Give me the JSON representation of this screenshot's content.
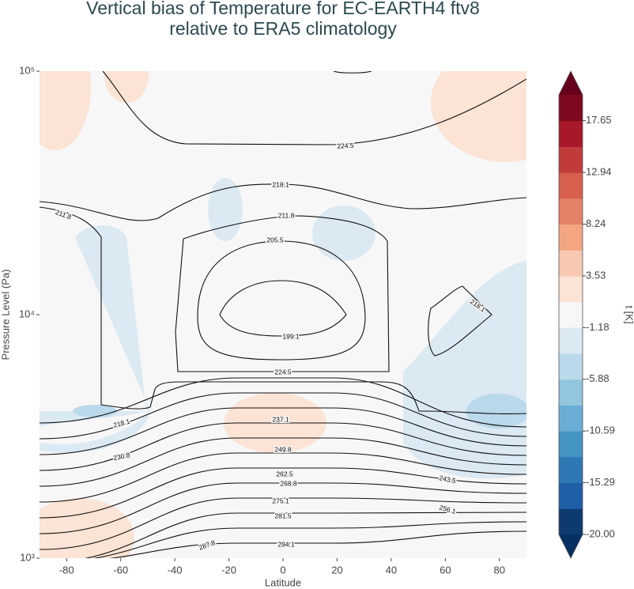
{
  "chart_data": {
    "type": "contour",
    "title": [
      "Vertical bias of Temperature for EC-EARTH4 ftv8",
      "relative to ERA5 climatology"
    ],
    "x_label": "Latitude",
    "y_label": "Pressure Level (Pa)",
    "xlim": [
      -90,
      90
    ],
    "xticks": [
      -80,
      -60,
      -40,
      -20,
      0,
      20,
      40,
      60,
      80
    ],
    "ylim": [
      1000,
      100000
    ],
    "yscale": "log",
    "yticks": [
      {
        "value": 1000,
        "label": "10³"
      },
      {
        "value": 10000,
        "label": "10⁴"
      },
      {
        "value": 100000,
        "label": "10⁵"
      }
    ],
    "contour_labels": [
      224.5,
      218.1,
      211.8,
      211.8,
      205.5,
      199.1,
      218.1,
      224.5,
      237.1,
      218.1,
      249.8,
      230.8,
      262.5,
      268.8,
      243.5,
      275.1,
      256.1,
      281.5,
      287.8,
      294.1
    ],
    "colorbar": {
      "label": "t [K]",
      "clim": [
        -20,
        20
      ],
      "ticks": [
        {
          "value": -20,
          "label": "-20.00"
        },
        -15.29,
        -10.59,
        -5.88,
        -1.18,
        3.53,
        8.24,
        12.94,
        17.65
      ],
      "colors": [
        "#0d3b70",
        "#1f5fa8",
        "#2e78b6",
        "#4393c3",
        "#6aaed6",
        "#92c5de",
        "#bad9ea",
        "#dbe9f3",
        "#f7f7f7",
        "#fbe3d5",
        "#f8c9b0",
        "#f4a582",
        "#e48267",
        "#d6604d",
        "#c23b3b",
        "#a8172a",
        "#7f0a1f"
      ],
      "extend_colors": [
        "#053061",
        "#67001f"
      ]
    }
  }
}
